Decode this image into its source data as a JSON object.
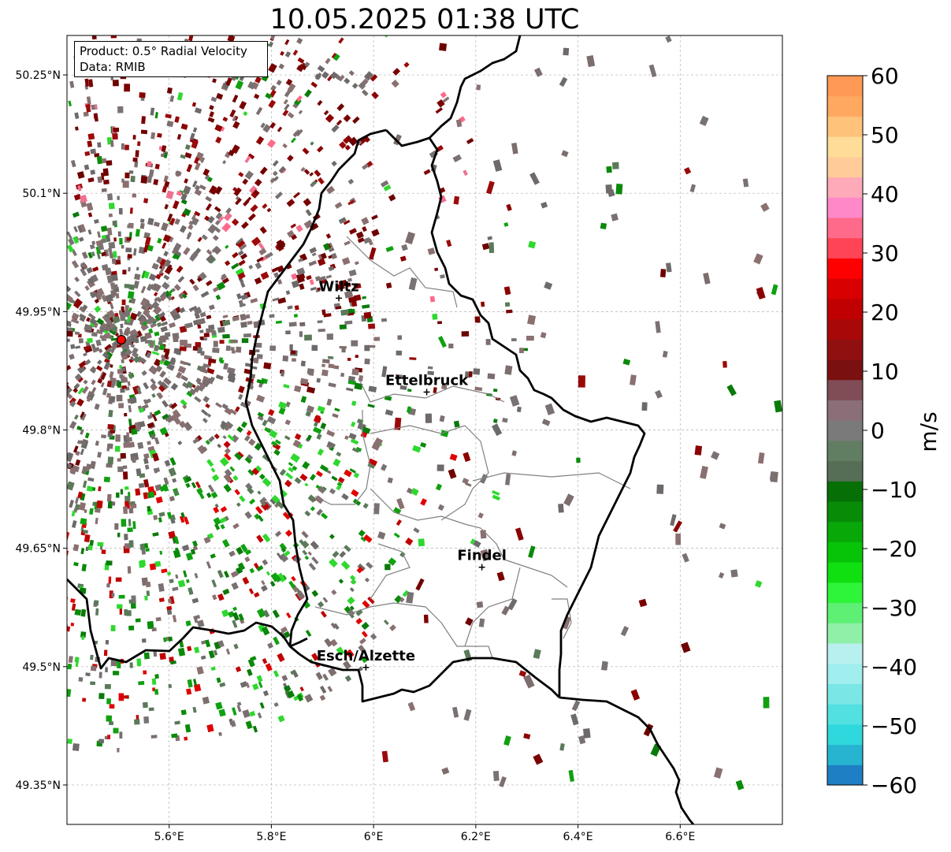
{
  "title": "10.05.2025 01:38 UTC",
  "info": {
    "product": "Product: 0.5° Radial Velocity",
    "data_source": "Data: RMIB"
  },
  "map": {
    "lon_range": [
      5.4,
      6.8
    ],
    "lat_range": [
      49.3,
      50.3
    ],
    "lon_ticks": [
      5.6,
      5.8,
      6.0,
      6.2,
      6.4,
      6.6
    ],
    "lon_tick_labels": [
      "5.6°E",
      "5.8°E",
      "6°E",
      "6.2°E",
      "6.4°E",
      "6.6°E"
    ],
    "lat_ticks": [
      50.25,
      50.1,
      49.95,
      49.8,
      49.65,
      49.5,
      49.35
    ],
    "lat_tick_labels": [
      "50.25°N",
      "50.1°N",
      "49.95°N",
      "49.8°N",
      "49.65°N",
      "49.5°N",
      "49.35°N"
    ],
    "grid": true,
    "radar_site": {
      "lon": 5.506,
      "lat": 49.914
    },
    "cities": [
      {
        "name": "Wiltz",
        "lon": 5.932,
        "lat": 49.967
      },
      {
        "name": "Ettelbruck",
        "lon": 6.104,
        "lat": 49.848
      },
      {
        "name": "Findel",
        "lon": 6.212,
        "lat": 49.626
      },
      {
        "name": "Esch/Alzette",
        "lon": 5.985,
        "lat": 49.499
      }
    ]
  },
  "colorbar": {
    "label": "m/s",
    "min": -60,
    "max": 60,
    "ticks": [
      60,
      50,
      40,
      30,
      20,
      10,
      0,
      -10,
      -20,
      -30,
      -40,
      -50,
      -60
    ],
    "tick_labels": [
      "60",
      "50",
      "40",
      "30",
      "20",
      "10",
      "0",
      "−10",
      "−20",
      "−30",
      "−40",
      "−50",
      "−60"
    ],
    "colors": [
      "#1f7fc4",
      "#26b4d0",
      "#2ed8dc",
      "#52e0e0",
      "#7ae6e6",
      "#a0eeee",
      "#b8f0f0",
      "#90f0a8",
      "#5ef075",
      "#2ef53a",
      "#10e010",
      "#08c408",
      "#08a808",
      "#088c08",
      "#067006",
      "#566e56",
      "#627e62",
      "#7a7a7a",
      "#8a6e78",
      "#804c56",
      "#7a1010",
      "#901010",
      "#a80808",
      "#c00000",
      "#d80000",
      "#ff0000",
      "#ff4455",
      "#ff6a8a",
      "#ff88c8",
      "#ffaab8",
      "#ffcc99",
      "#ffdd99",
      "#ffc27a",
      "#ffa860",
      "#ff9955"
    ]
  }
}
